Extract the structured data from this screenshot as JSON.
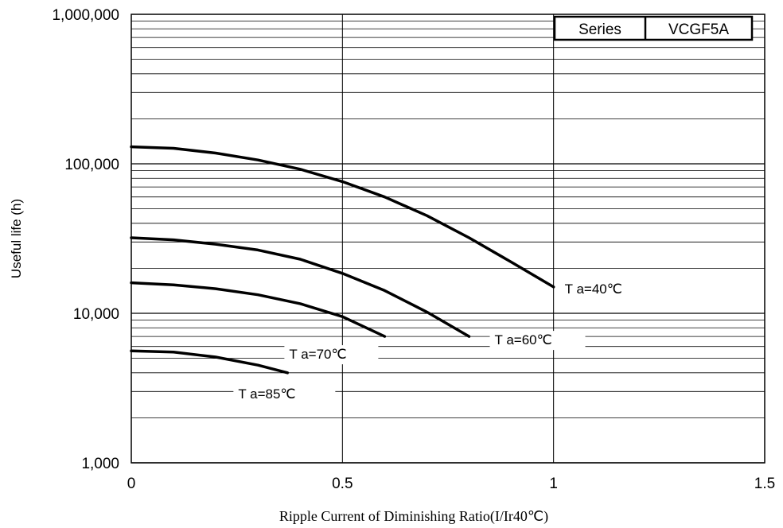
{
  "chart_data": {
    "type": "line",
    "x_label": "Ripple Current of Diminishing Ratio(I/Ir40℃)",
    "y_label": "Useful life (h)",
    "y_scale": "log",
    "xlim": [
      0,
      1.5
    ],
    "ylim": [
      1000,
      1000000
    ],
    "grid": true,
    "x_ticks": [
      {
        "value": 0,
        "label": "0"
      },
      {
        "value": 0.5,
        "label": "0.5"
      },
      {
        "value": 1,
        "label": "1"
      },
      {
        "value": 1.5,
        "label": "1.5"
      }
    ],
    "y_ticks": [
      {
        "value": 1000,
        "label": "1,000"
      },
      {
        "value": 10000,
        "label": "10,000"
      },
      {
        "value": 100000,
        "label": "100,000"
      },
      {
        "value": 1000000,
        "label": "1,000,000"
      }
    ],
    "legend_box": {
      "left": "Series",
      "right": "VCGF5A",
      "placement": "top-right"
    },
    "series": [
      {
        "name": "T a=40℃",
        "x": [
          0,
          0.1,
          0.2,
          0.3,
          0.4,
          0.5,
          0.6,
          0.7,
          0.8,
          0.9,
          1.0
        ],
        "y": [
          130000,
          127000,
          118000,
          106000,
          92000,
          76000,
          60000,
          45000,
          32000,
          22000,
          15000
        ]
      },
      {
        "name": "T a=60℃",
        "x": [
          0,
          0.1,
          0.2,
          0.3,
          0.4,
          0.5,
          0.6,
          0.7,
          0.8
        ],
        "y": [
          32000,
          31000,
          29000,
          26500,
          23000,
          18500,
          14200,
          10200,
          7000
        ]
      },
      {
        "name": "T a=70℃",
        "x": [
          0,
          0.1,
          0.2,
          0.3,
          0.4,
          0.5,
          0.6
        ],
        "y": [
          16000,
          15500,
          14600,
          13300,
          11600,
          9500,
          7000
        ]
      },
      {
        "name": "T a=85℃",
        "x": [
          0,
          0.1,
          0.2,
          0.3,
          0.37
        ],
        "y": [
          5600,
          5500,
          5100,
          4500,
          4000
        ]
      }
    ]
  }
}
